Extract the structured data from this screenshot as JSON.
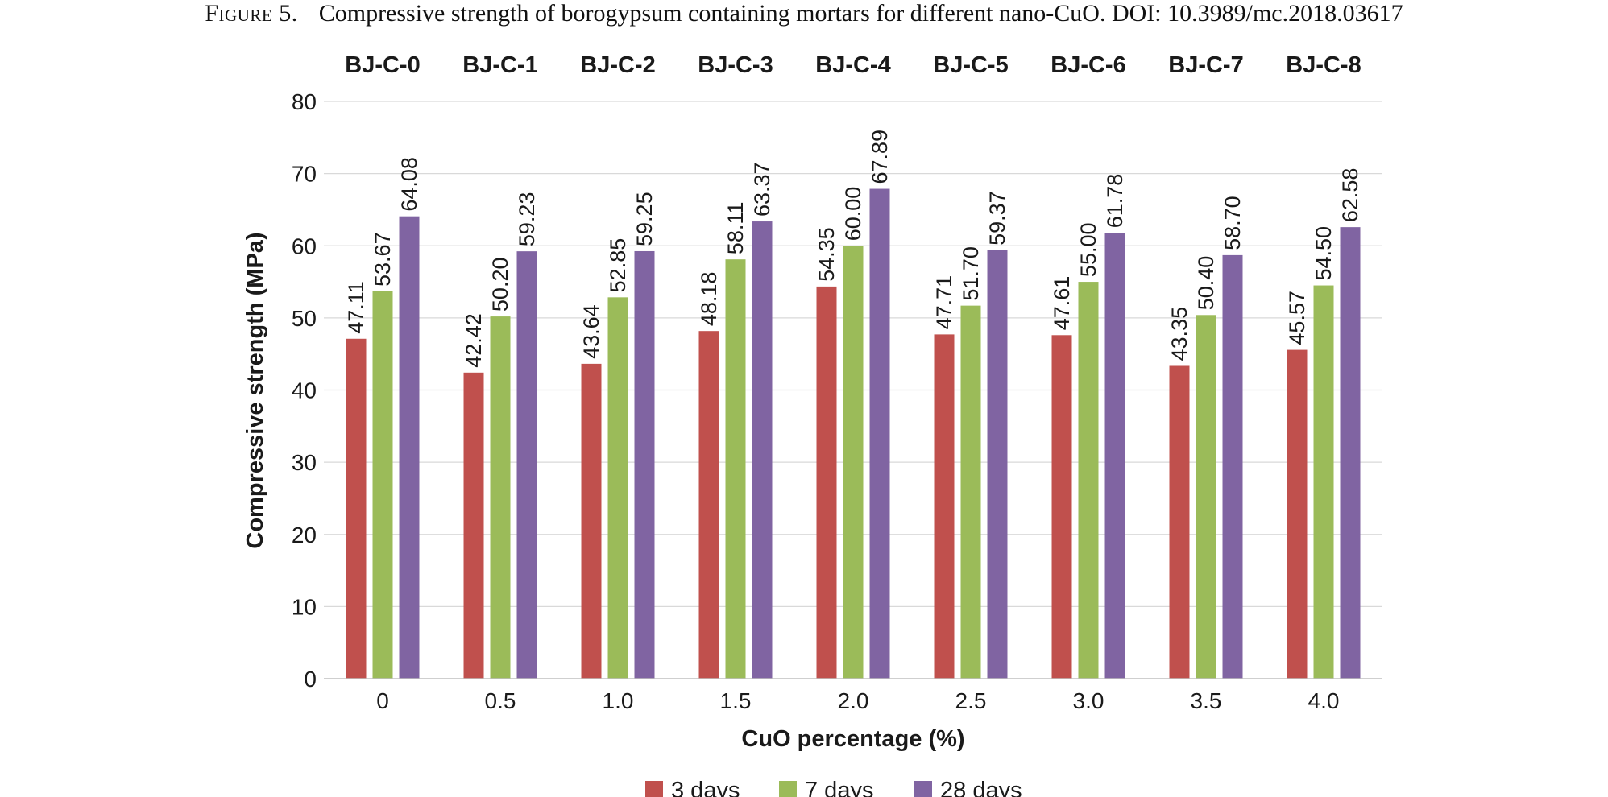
{
  "caption": {
    "figure_label": "Figure 5.",
    "text": "Compressive strength of borogypsum containing mortars for different nano-CuO. DOI: 10.3989/mc.2018.03617"
  },
  "colors": {
    "series": [
      "#c0504d",
      "#9bbb59",
      "#8064a2"
    ],
    "grid": "#d9d9d9",
    "axis": "#bfbfbf"
  },
  "chart_data": {
    "type": "bar",
    "title": "",
    "xlabel": "CuO percentage (%)",
    "ylabel": "Compressive strength (MPa)",
    "ylim": [
      0,
      80
    ],
    "yticks": [
      0,
      10,
      20,
      30,
      40,
      50,
      60,
      70,
      80
    ],
    "grid": true,
    "legend_position": "bottom",
    "categories": [
      "0",
      "0.5",
      "1.0",
      "1.5",
      "2.0",
      "2.5",
      "3.0",
      "3.5",
      "4.0"
    ],
    "group_labels": [
      "BJ-C-0",
      "BJ-C-1",
      "BJ-C-2",
      "BJ-C-3",
      "BJ-C-4",
      "BJ-C-5",
      "BJ-C-6",
      "BJ-C-7",
      "BJ-C-8"
    ],
    "series": [
      {
        "name": "3 days",
        "values": [
          47.11,
          42.42,
          43.64,
          48.18,
          54.35,
          47.71,
          47.61,
          43.35,
          45.57
        ],
        "labels": [
          "47.11",
          "42.42",
          "43.64",
          "48.18",
          "54.35",
          "47.71",
          "47.61",
          "43.35",
          "45.57"
        ]
      },
      {
        "name": "7 days",
        "values": [
          53.67,
          50.2,
          52.85,
          58.11,
          60.0,
          51.7,
          55.0,
          50.4,
          54.5
        ],
        "labels": [
          "53.67",
          "50.20",
          "52.85",
          "58.11",
          "60.00",
          "51.70",
          "55.00",
          "50.40",
          "54.50"
        ]
      },
      {
        "name": "28 days",
        "values": [
          64.08,
          59.23,
          59.25,
          63.37,
          67.89,
          59.37,
          61.78,
          58.7,
          62.58
        ],
        "labels": [
          "64.08",
          "59.23",
          "59.25",
          "63.37",
          "67.89",
          "59.37",
          "61.78",
          "58.70",
          "62.58"
        ]
      }
    ]
  }
}
